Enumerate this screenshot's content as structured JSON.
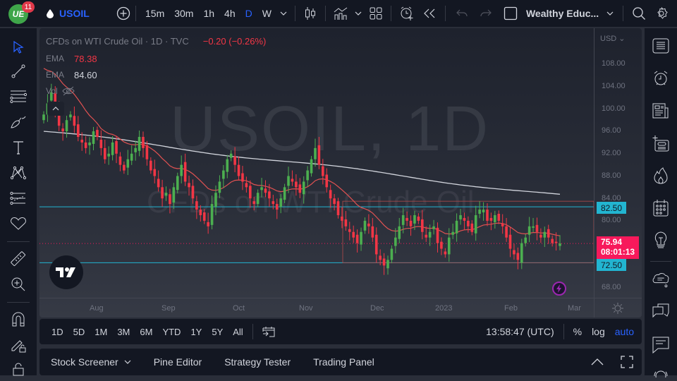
{
  "topbar": {
    "notification_count": "11",
    "logo_text": "UE",
    "symbol": "USOIL",
    "intervals": [
      "15m",
      "30m",
      "1h",
      "4h",
      "D",
      "W"
    ],
    "active_interval": "D",
    "layout_name": "Wealthy Educ...",
    "icons": [
      "plus-circle-icon",
      "chevron-down-icon",
      "candles-icon",
      "indicators-icon",
      "chevron-down-icon",
      "templates-icon",
      "alert-icon",
      "replay-icon",
      "undo-icon",
      "redo-icon",
      "layout-icon",
      "chevron-down-icon",
      "search-icon",
      "settings-icon"
    ]
  },
  "chart": {
    "title": "CFDs on WTI Crude Oil · 1D · TVC",
    "change": "−0.20 (−0.26%)",
    "ema1": {
      "label": "EMA",
      "value": "78.38",
      "color": "#f23645"
    },
    "ema2": {
      "label": "EMA",
      "value": "84.60",
      "color": "#d1d4dc"
    },
    "vol_label": "Vol",
    "watermark_symbol": "USOIL, 1D",
    "watermark_desc": "CFDs on WTI Crude Oil",
    "currency": "USD",
    "price_ticks": [
      "108.00",
      "104.00",
      "100.00",
      "96.00",
      "92.00",
      "88.00",
      "84.00",
      "80.00",
      "68.00"
    ],
    "time_ticks": [
      "Aug",
      "Sep",
      "Oct",
      "Nov",
      "Dec",
      "2023",
      "Feb",
      "Mar"
    ],
    "resistance": {
      "value": "82.50",
      "color": "#22b5d1"
    },
    "support": {
      "value": "72.50",
      "color": "#22b5d1"
    },
    "last_price": "75.94",
    "countdown": "08:01:13",
    "colors": {
      "up": "#4caf50",
      "down": "#f23645",
      "ema_fast": "#e05252",
      "ema_slow": "#d1d4dc"
    }
  },
  "bottom": {
    "ranges": [
      "1D",
      "5D",
      "1M",
      "3M",
      "6M",
      "YTD",
      "1Y",
      "5Y",
      "All"
    ],
    "clock": "13:58:47 (UTC)",
    "percent": "%",
    "log": "log",
    "auto": "auto"
  },
  "panels": {
    "items": [
      "Stock Screener",
      "Pine Editor",
      "Strategy Tester",
      "Trading Panel"
    ]
  },
  "chart_data": {
    "type": "candlestick",
    "title": "CFDs on WTI Crude Oil · 1D · TVC",
    "xlabel": "",
    "ylabel": "USD",
    "ylim": [
      66,
      110
    ],
    "x_ticks": [
      "Aug",
      "Sep",
      "Oct",
      "Nov",
      "Dec",
      "2023",
      "Feb",
      "Mar"
    ],
    "y_ticks": [
      108,
      104,
      100,
      96,
      92,
      88,
      84,
      80,
      68
    ],
    "horizontal_lines": [
      82.5,
      72.5
    ],
    "last_price": 75.94,
    "series": [
      {
        "name": "EMA fast",
        "value": 78.38
      },
      {
        "name": "EMA slow",
        "value": 84.6
      }
    ],
    "candles_close_approx": [
      99,
      101,
      103,
      100,
      97,
      96,
      98,
      99,
      97,
      95,
      94,
      93,
      94,
      96,
      95,
      93,
      91,
      92,
      94,
      92,
      90,
      89,
      91,
      92,
      93,
      95,
      93,
      91,
      89,
      88,
      86,
      84,
      85,
      83,
      86,
      88,
      90,
      87,
      86,
      84,
      82,
      81,
      80,
      79,
      83,
      85,
      87,
      89,
      91,
      92,
      90,
      88,
      87,
      86,
      84,
      83,
      85,
      86,
      85,
      84,
      83,
      82,
      84,
      86,
      88,
      87,
      86,
      85,
      87,
      89,
      91,
      93,
      90,
      88,
      86,
      84,
      83,
      81,
      80,
      79,
      78,
      77,
      76,
      78,
      80,
      79,
      77,
      74,
      73,
      72,
      73,
      75,
      77,
      79,
      81,
      80,
      79,
      81,
      80,
      78,
      77,
      78,
      79,
      76,
      75,
      74,
      77,
      78,
      80,
      81,
      80,
      79,
      78,
      81,
      82,
      82,
      80,
      80,
      81,
      80,
      79,
      77,
      75,
      74,
      73,
      76,
      77,
      79,
      79,
      78,
      77,
      78,
      77,
      76,
      76,
      75.94
    ]
  }
}
